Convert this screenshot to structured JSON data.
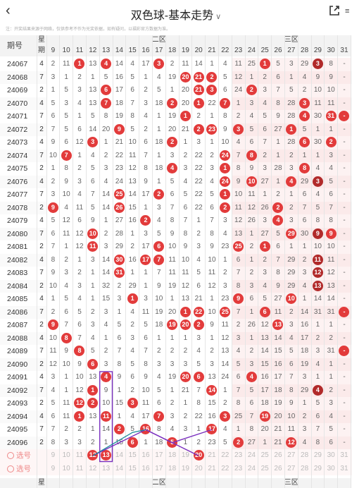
{
  "header": {
    "back_icon": "chevron-left-icon",
    "title": "双色球-基本走势",
    "title_chevron": "∨",
    "share_icon": "share-icon",
    "extra_label": "≡"
  },
  "disclaimer": "注：开奖结果来源于网络，仅供参考不作为兑奖依据，如有疑问，以福彩官方数据为准。",
  "columns": {
    "issue_label": "期号",
    "week_label_top": "星",
    "week_label_bottom": "期",
    "zone2_label": "二区",
    "zone3_label": "三区",
    "numbers": [
      9,
      10,
      11,
      12,
      13,
      14,
      15,
      16,
      17,
      18,
      19,
      20,
      21,
      22,
      23,
      24,
      25,
      26,
      27,
      28,
      29,
      30,
      31
    ]
  },
  "rows": [
    {
      "issue": "24067",
      "week": "4",
      "vals": [
        "2",
        "11",
        "1",
        "13",
        "4",
        "14",
        "4",
        "17",
        "3",
        "2",
        "11",
        "14",
        "1",
        "4",
        "11",
        "25",
        "1",
        "5",
        "3",
        "29",
        "3",
        "8",
        "-"
      ],
      "balls": [
        11,
        13,
        17,
        25,
        29
      ]
    },
    {
      "issue": "24068",
      "week": "7",
      "vals": [
        "3",
        "1",
        "2",
        "1",
        "5",
        "16",
        "5",
        "1",
        "4",
        "19",
        "20",
        "21",
        "2",
        "5",
        "12",
        "1",
        "2",
        "6",
        "1",
        "4",
        "9",
        "9",
        "-"
      ],
      "balls": [
        19,
        20,
        21
      ]
    },
    {
      "issue": "24069",
      "week": "2",
      "vals": [
        "1",
        "5",
        "3",
        "13",
        "6",
        "17",
        "6",
        "2",
        "5",
        "1",
        "20",
        "21",
        "3",
        "6",
        "24",
        "2",
        "3",
        "7",
        "5",
        "2",
        "10",
        "10",
        "-"
      ],
      "balls": [
        13,
        20,
        21,
        24
      ]
    },
    {
      "issue": "24070",
      "week": "4",
      "vals": [
        "5",
        "3",
        "4",
        "13",
        "7",
        "18",
        "7",
        "3",
        "18",
        "2",
        "20",
        "1",
        "22",
        "7",
        "1",
        "3",
        "4",
        "8",
        "28",
        "3",
        "11",
        "11",
        "-"
      ],
      "balls": [
        13,
        18,
        20,
        22,
        28
      ]
    },
    {
      "issue": "24071",
      "week": "7",
      "vals": [
        "6",
        "5",
        "1",
        "5",
        "8",
        "19",
        "8",
        "4",
        "1",
        "19",
        "1",
        "2",
        "1",
        "8",
        "2",
        "4",
        "5",
        "9",
        "28",
        "4",
        "30",
        "31",
        "-"
      ],
      "balls": [
        19,
        28,
        30,
        31
      ]
    },
    {
      "issue": "24072",
      "week": "2",
      "vals": [
        "7",
        "5",
        "6",
        "14",
        "20",
        "9",
        "5",
        "2",
        "1",
        "20",
        "21",
        "2",
        "23",
        "9",
        "3",
        "5",
        "6",
        "27",
        "1",
        "5",
        "1",
        "1",
        "-"
      ],
      "balls": [
        14,
        20,
        21,
        23,
        27
      ]
    },
    {
      "issue": "24073",
      "week": "4",
      "vals": [
        "9",
        "6",
        "12",
        "3",
        "1",
        "21",
        "10",
        "6",
        "18",
        "2",
        "1",
        "3",
        "1",
        "10",
        "4",
        "6",
        "7",
        "1",
        "28",
        "6",
        "30",
        "2",
        "-"
      ],
      "balls": [
        12,
        18,
        28,
        30
      ]
    },
    {
      "issue": "24074",
      "week": "7",
      "vals": [
        "10",
        "7",
        "1",
        "4",
        "2",
        "22",
        "11",
        "7",
        "1",
        "3",
        "2",
        "22",
        "2",
        "24",
        "7",
        "8",
        "2",
        "1",
        "2",
        "1",
        "1",
        "3",
        "-"
      ],
      "balls": [
        10,
        22,
        24
      ]
    },
    {
      "issue": "24075",
      "week": "2",
      "vals": [
        "1",
        "8",
        "2",
        "5",
        "3",
        "23",
        "12",
        "8",
        "18",
        "4",
        "3",
        "22",
        "3",
        "1",
        "8",
        "9",
        "3",
        "28",
        "3",
        "8",
        "4",
        "4",
        "-"
      ],
      "balls": [
        18,
        22,
        28
      ]
    },
    {
      "issue": "24076",
      "week": "4",
      "vals": [
        "2",
        "9",
        "3",
        "6",
        "4",
        "24",
        "13",
        "9",
        "1",
        "5",
        "4",
        "22",
        "4",
        "24",
        "9",
        "10",
        "27",
        "1",
        "4",
        "29",
        "3",
        "5",
        "-"
      ],
      "balls": [
        22,
        24,
        27,
        29
      ]
    },
    {
      "issue": "24077",
      "week": "7",
      "vals": [
        "3",
        "10",
        "4",
        "7",
        "14",
        "25",
        "14",
        "17",
        "2",
        "6",
        "5",
        "22",
        "5",
        "1",
        "10",
        "11",
        "1",
        "2",
        "1",
        "6",
        "4",
        "6",
        "-"
      ],
      "balls": [
        14,
        17,
        22
      ]
    },
    {
      "issue": "24078",
      "week": "2",
      "vals": [
        "9",
        "4",
        "11",
        "5",
        "14",
        "26",
        "15",
        "1",
        "3",
        "7",
        "6",
        "22",
        "6",
        "2",
        "11",
        "12",
        "26",
        "2",
        "2",
        "7",
        "5",
        "7",
        "-"
      ],
      "balls": [
        9,
        14,
        22,
        26
      ]
    },
    {
      "issue": "24079",
      "week": "4",
      "vals": [
        "5",
        "12",
        "6",
        "9",
        "1",
        "27",
        "16",
        "2",
        "4",
        "8",
        "7",
        "1",
        "7",
        "3",
        "12",
        "26",
        "3",
        "4",
        "3",
        "6",
        "8",
        "8",
        "-"
      ],
      "balls": [
        16,
        26
      ]
    },
    {
      "issue": "24080",
      "week": "7",
      "vals": [
        "6",
        "11",
        "12",
        "10",
        "2",
        "28",
        "1",
        "3",
        "5",
        "9",
        "8",
        "2",
        "8",
        "4",
        "13",
        "1",
        "27",
        "5",
        "29",
        "30",
        "9",
        "9",
        "-"
      ],
      "balls": [
        12,
        27,
        29,
        30
      ]
    },
    {
      "issue": "24081",
      "week": "2",
      "vals": [
        "7",
        "1",
        "12",
        "11",
        "3",
        "29",
        "2",
        "17",
        "6",
        "10",
        "9",
        "3",
        "9",
        "23",
        "25",
        "2",
        "1",
        "6",
        "1",
        "1",
        "10",
        "10",
        "-"
      ],
      "balls": [
        12,
        17,
        23,
        25
      ]
    },
    {
      "issue": "24082",
      "week": "4",
      "vals": [
        "8",
        "2",
        "1",
        "3",
        "14",
        "30",
        "16",
        "17",
        "7",
        "11",
        "10",
        "4",
        "10",
        "1",
        "6",
        "1",
        "2",
        "7",
        "29",
        "2",
        "11",
        "11",
        "-"
      ],
      "balls": [
        14,
        16,
        17,
        29
      ]
    },
    {
      "issue": "24083",
      "week": "7",
      "vals": [
        "9",
        "3",
        "2",
        "1",
        "14",
        "31",
        "1",
        "1",
        "7",
        "11",
        "11",
        "5",
        "11",
        "2",
        "7",
        "2",
        "3",
        "8",
        "29",
        "3",
        "12",
        "12",
        "-"
      ],
      "balls": [
        14,
        29
      ]
    },
    {
      "issue": "24084",
      "week": "2",
      "vals": [
        "10",
        "4",
        "3",
        "1",
        "32",
        "2",
        "29",
        "1",
        "9",
        "19",
        "12",
        "6",
        "12",
        "3",
        "8",
        "3",
        "4",
        "9",
        "29",
        "4",
        "13",
        "13",
        "-"
      ],
      "balls": [
        29
      ]
    },
    {
      "issue": "24085",
      "week": "4",
      "vals": [
        "1",
        "5",
        "4",
        "1",
        "15",
        "3",
        "1",
        "3",
        "10",
        "1",
        "13",
        "21",
        "1",
        "23",
        "9",
        "6",
        "5",
        "27",
        "10",
        "1",
        "14",
        "14",
        "-"
      ],
      "balls": [
        15,
        23,
        27
      ]
    },
    {
      "issue": "24086",
      "week": "7",
      "vals": [
        "2",
        "6",
        "5",
        "2",
        "3",
        "1",
        "4",
        "11",
        "19",
        "20",
        "1",
        "22",
        "10",
        "25",
        "7",
        "1",
        "6",
        "11",
        "2",
        "14",
        "31",
        "31",
        "-"
      ],
      "balls": [
        19,
        20,
        22,
        25,
        31
      ]
    },
    {
      "issue": "24087",
      "week": "2",
      "vals": [
        "9",
        "7",
        "6",
        "3",
        "4",
        "5",
        "2",
        "5",
        "18",
        "19",
        "20",
        "2",
        "9",
        "11",
        "2",
        "26",
        "12",
        "13",
        "3",
        "16",
        "1",
        "1",
        "-"
      ],
      "balls": [
        9,
        18,
        19,
        20,
        26
      ]
    },
    {
      "issue": "24088",
      "week": "4",
      "vals": [
        "10",
        "8",
        "7",
        "4",
        "1",
        "6",
        "3",
        "6",
        "1",
        "1",
        "1",
        "3",
        "1",
        "12",
        "3",
        "1",
        "13",
        "14",
        "4",
        "17",
        "2",
        "2",
        "-"
      ],
      "balls": [
        10
      ]
    },
    {
      "issue": "24089",
      "week": "7",
      "vals": [
        "11",
        "9",
        "8",
        "5",
        "2",
        "7",
        "4",
        "7",
        "2",
        "2",
        "2",
        "4",
        "2",
        "13",
        "4",
        "2",
        "14",
        "15",
        "5",
        "18",
        "3",
        "31",
        "-"
      ],
      "balls": [
        11,
        31
      ]
    },
    {
      "issue": "24090",
      "week": "2",
      "vals": [
        "12",
        "10",
        "9",
        "6",
        "3",
        "8",
        "5",
        "8",
        "3",
        "3",
        "3",
        "5",
        "3",
        "14",
        "5",
        "3",
        "15",
        "16",
        "6",
        "19",
        "4",
        "1",
        "-"
      ],
      "balls": [
        12
      ]
    },
    {
      "issue": "24091",
      "week": "4",
      "vals": [
        "3",
        "1",
        "10",
        "13",
        "4",
        "9",
        "6",
        "9",
        "4",
        "19",
        "20",
        "6",
        "13",
        "24",
        "6",
        "4",
        "16",
        "17",
        "7",
        "3",
        "1",
        "1",
        "-"
      ],
      "balls": [
        13,
        19,
        20,
        24
      ]
    },
    {
      "issue": "24092",
      "week": "7",
      "vals": [
        "4",
        "1",
        "12",
        "1",
        "9",
        "1",
        "2",
        "10",
        "5",
        "1",
        "21",
        "7",
        "14",
        "1",
        "7",
        "5",
        "17",
        "18",
        "8",
        "29",
        "4",
        "2",
        "-"
      ],
      "balls": [
        12,
        21,
        29
      ]
    },
    {
      "issue": "24093",
      "week": "2",
      "vals": [
        "5",
        "11",
        "12",
        "2",
        "10",
        "15",
        "3",
        "11",
        "6",
        "2",
        "1",
        "8",
        "15",
        "2",
        "8",
        "6",
        "18",
        "19",
        "9",
        "1",
        "5",
        "3",
        "-"
      ],
      "balls": [
        11,
        12,
        15
      ]
    },
    {
      "issue": "24094",
      "week": "4",
      "vals": [
        "6",
        "11",
        "1",
        "13",
        "11",
        "1",
        "4",
        "17",
        "7",
        "3",
        "2",
        "22",
        "16",
        "3",
        "25",
        "7",
        "19",
        "20",
        "10",
        "2",
        "6",
        "4",
        "-"
      ],
      "balls": [
        11,
        13,
        17,
        22,
        25
      ]
    },
    {
      "issue": "24095",
      "week": "7",
      "vals": [
        "7",
        "2",
        "2",
        "1",
        "14",
        "2",
        "5",
        "16",
        "8",
        "4",
        "3",
        "1",
        "17",
        "4",
        "1",
        "8",
        "20",
        "21",
        "11",
        "3",
        "7",
        "5",
        "-"
      ],
      "balls": [
        14,
        16,
        21
      ]
    },
    {
      "issue": "24096",
      "week": "2",
      "vals": [
        "8",
        "3",
        "3",
        "2",
        "1",
        "15",
        "6",
        "1",
        "18",
        "5",
        "1",
        "2",
        "23",
        "5",
        "2",
        "27",
        "1",
        "21",
        "12",
        "4",
        "8",
        "6",
        "-"
      ],
      "balls": [
        15,
        18,
        23,
        27
      ]
    }
  ],
  "select_rows": [
    {
      "label": "选号",
      "nums": [
        "9",
        "10",
        "11",
        "12",
        "13",
        "14",
        "15",
        "16",
        "17",
        "18",
        "19",
        "20",
        "21",
        "22",
        "23",
        "24",
        "25",
        "26",
        "27",
        "28",
        "29",
        "30",
        "31"
      ],
      "balls": [
        12,
        13,
        20
      ]
    },
    {
      "label": "选号",
      "nums": [
        "9",
        "10",
        "11",
        "12",
        "13",
        "14",
        "15",
        "16",
        "17",
        "18",
        "19",
        "20",
        "21",
        "22",
        "23",
        "24",
        "25",
        "26",
        "27",
        "28",
        "29",
        "30",
        "31"
      ],
      "balls": []
    }
  ],
  "colors": {
    "ball": "#e23b3b",
    "ball_dark": "#b12a2a",
    "zone_tint": "#fdf1f1",
    "accent_line": "#7a2fbf",
    "teal_line": "#1a8a9a"
  }
}
